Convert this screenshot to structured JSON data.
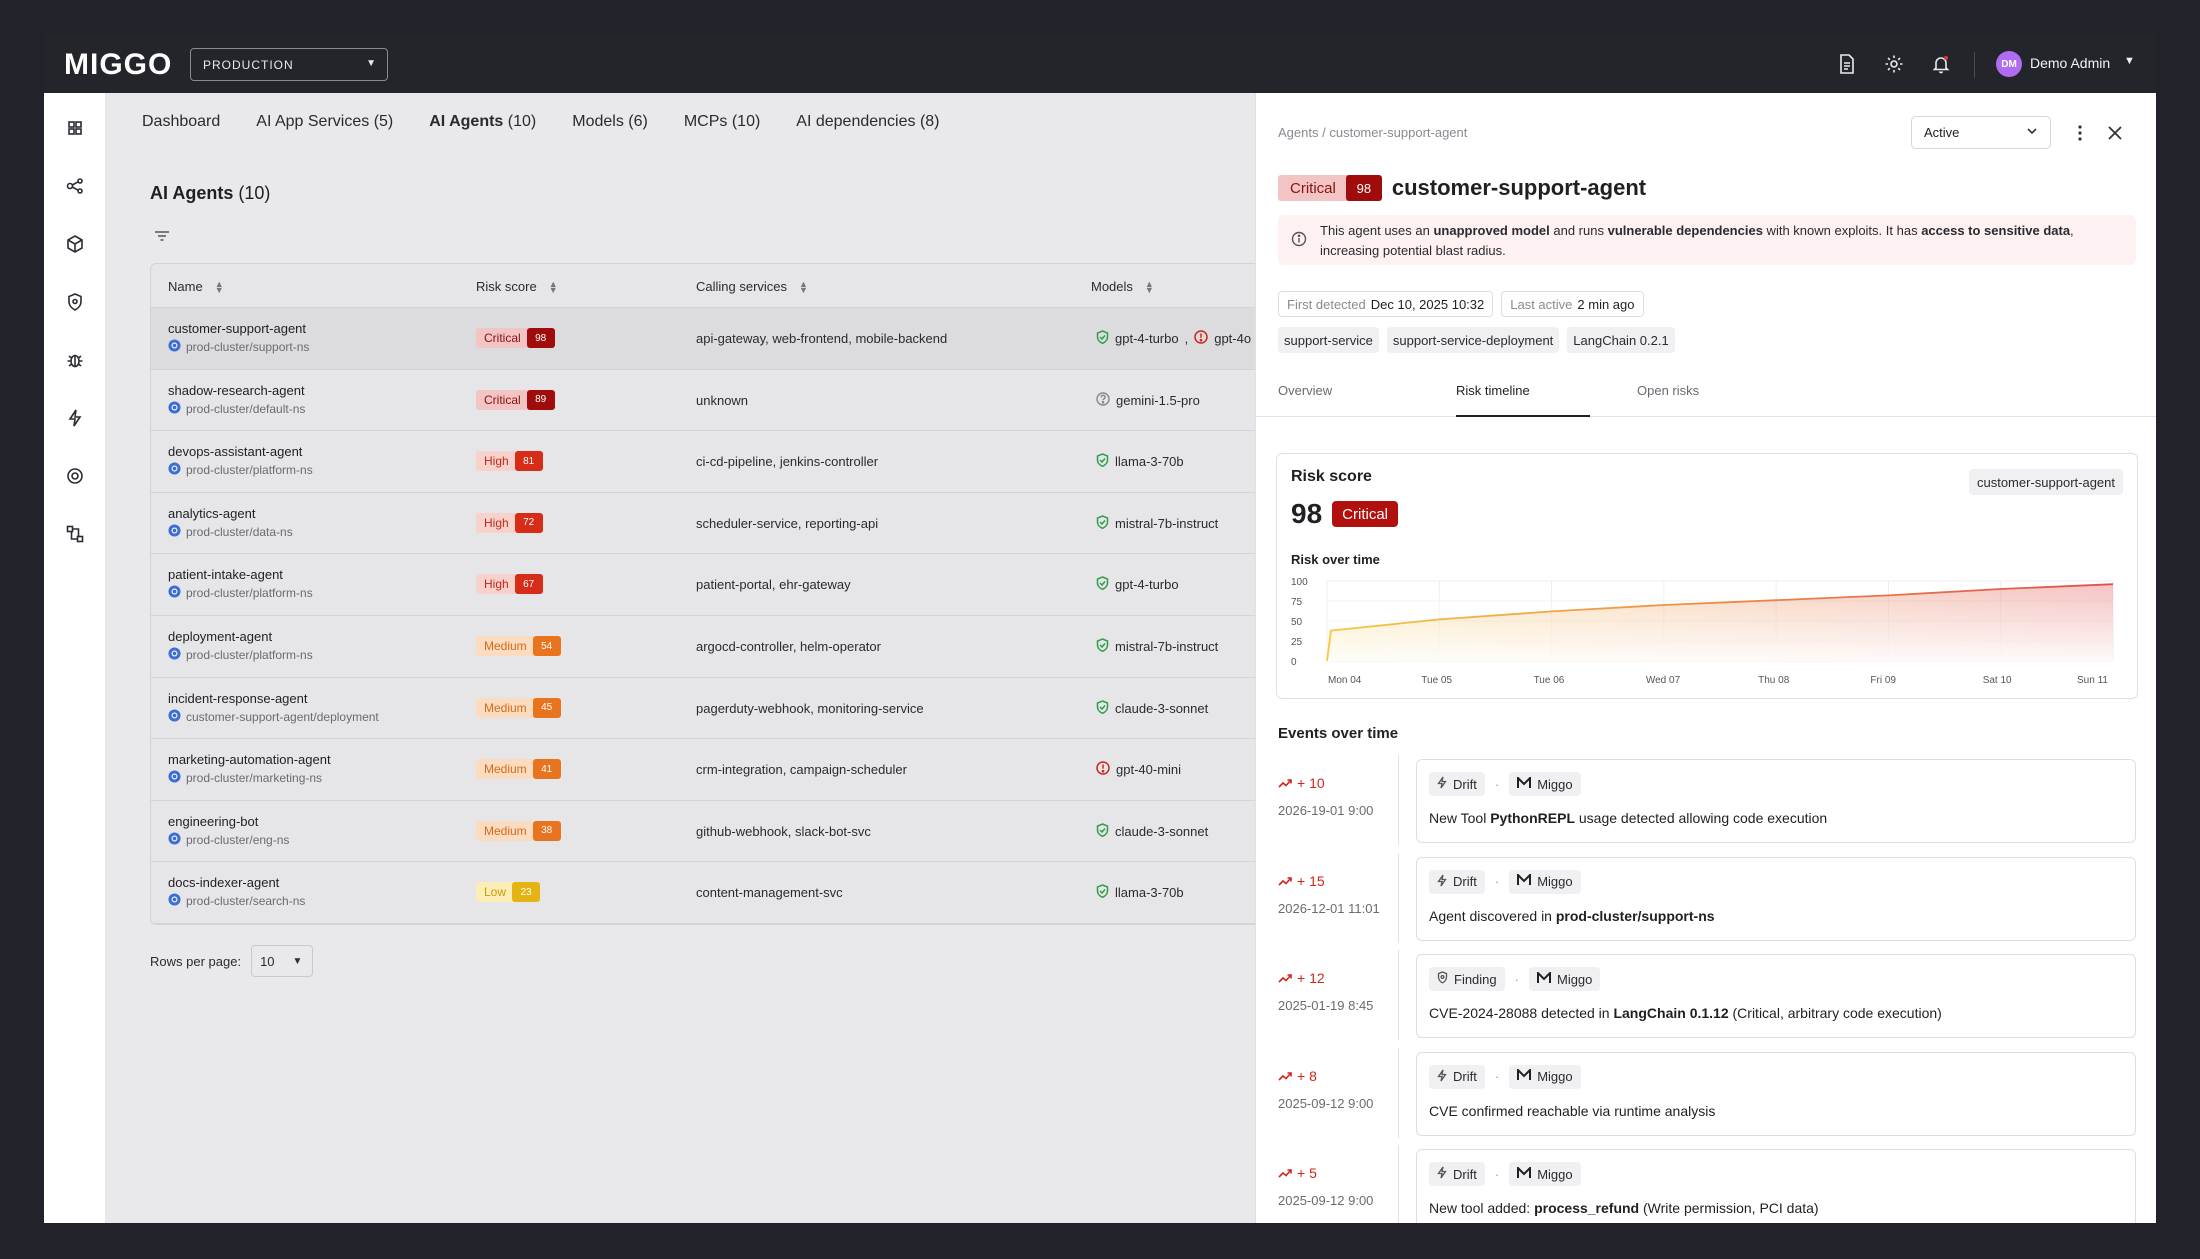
{
  "app": {
    "logo": "MIGGO",
    "environment": "PRODUCTION",
    "user": {
      "initials": "DM",
      "name": "Demo Admin"
    }
  },
  "tabs": [
    {
      "label": "Dashboard",
      "count": ""
    },
    {
      "label": "AI App Services",
      "count": "(5)"
    },
    {
      "label": "AI Agents",
      "count": "(10)"
    },
    {
      "label": "Models",
      "count": "(6)"
    },
    {
      "label": "MCPs",
      "count": "(10)"
    },
    {
      "label": "AI dependencies",
      "count": "(8)"
    }
  ],
  "main": {
    "title": "AI Agents",
    "title_count": "(10)",
    "columns": [
      "Name",
      "Risk score",
      "Calling services",
      "Models"
    ],
    "rows_per_page_label": "Rows per page:",
    "rows_per_page_value": "10"
  },
  "agents": [
    {
      "name": "customer-support-agent",
      "ns": "prod-cluster/support-ns",
      "risk_label": "Critical",
      "risk": "98",
      "calling": "api-gateway, web-frontend, mobile-backend",
      "model": "gpt-4-turbo",
      "model_status": "ok",
      "model2": "gpt-4o",
      "model2_status": "warn"
    },
    {
      "name": "shadow-research-agent",
      "ns": "prod-cluster/default-ns",
      "risk_label": "Critical",
      "risk": "89",
      "calling": "unknown",
      "model": "gemini-1.5-pro",
      "model_status": "unknown"
    },
    {
      "name": "devops-assistant-agent",
      "ns": "prod-cluster/platform-ns",
      "risk_label": "High",
      "risk": "81",
      "calling": "ci-cd-pipeline, jenkins-controller",
      "model": "llama-3-70b",
      "model_status": "ok"
    },
    {
      "name": "analytics-agent",
      "ns": "prod-cluster/data-ns",
      "risk_label": "High",
      "risk": "72",
      "calling": "scheduler-service, reporting-api",
      "model": "mistral-7b-instruct",
      "model_status": "ok"
    },
    {
      "name": "patient-intake-agent",
      "ns": "prod-cluster/platform-ns",
      "risk_label": "High",
      "risk": "67",
      "calling": "patient-portal, ehr-gateway",
      "model": "gpt-4-turbo",
      "model_status": "ok"
    },
    {
      "name": "deployment-agent",
      "ns": "prod-cluster/platform-ns",
      "risk_label": "Medium",
      "risk": "54",
      "calling": "argocd-controller, helm-operator",
      "model": "mistral-7b-instruct",
      "model_status": "ok"
    },
    {
      "name": "incident-response-agent",
      "ns": "customer-support-agent/deployment",
      "risk_label": "Medium",
      "risk": "45",
      "calling": "pagerduty-webhook, monitoring-service",
      "model": "claude-3-sonnet",
      "model_status": "ok"
    },
    {
      "name": "marketing-automation-agent",
      "ns": "prod-cluster/marketing-ns",
      "risk_label": "Medium",
      "risk": "41",
      "calling": "crm-integration, campaign-scheduler",
      "model": "gpt-40-mini",
      "model_status": "warn"
    },
    {
      "name": "engineering-bot",
      "ns": "prod-cluster/eng-ns",
      "risk_label": "Medium",
      "risk": "38",
      "calling": "github-webhook, slack-bot-svc",
      "model": "claude-3-sonnet",
      "model_status": "ok"
    },
    {
      "name": "docs-indexer-agent",
      "ns": "prod-cluster/search-ns",
      "risk_label": "Low",
      "risk": "23",
      "calling": "content-management-svc",
      "model": "llama-3-70b",
      "model_status": "ok"
    }
  ],
  "panel": {
    "breadcrumb_root": "Agents",
    "breadcrumb_sep": "/",
    "breadcrumb_leaf": "customer-support-agent",
    "status": "Active",
    "risk_label": "Critical",
    "risk": "98",
    "title": "customer-support-agent",
    "alert": {
      "p1": "This agent uses an ",
      "b1": "unapproved model",
      "p2": " and runs ",
      "b2": "vulnerable dependencies",
      "p3": " with known exploits. It has ",
      "b3": "access to sensitive data",
      "p4": ", increasing potential blast radius."
    },
    "first_detected_label": "First detected",
    "first_detected": "Dec 10, 2025 10:32",
    "last_active_label": "Last active",
    "last_active": "2 min ago",
    "tags": [
      "support-service",
      "support-service-deployment",
      "LangChain 0.2.1"
    ],
    "tabs": [
      "Overview",
      "Risk timeline",
      "Open risks"
    ],
    "risk_card": {
      "title": "Risk score",
      "tag": "customer-support-agent",
      "score": "98",
      "score_label": "Critical",
      "subtitle": "Risk over time"
    },
    "events_title": "Events over time"
  },
  "chart_data": {
    "type": "area",
    "title": "Risk over time",
    "x": [
      "Mon 04",
      "Tue 05",
      "Tue 06",
      "Wed 07",
      "Thu 08",
      "Fri 09",
      "Sat 10",
      "Sun 11"
    ],
    "values": [
      38,
      52,
      62,
      70,
      76,
      82,
      90,
      96
    ],
    "yticks": [
      0,
      25,
      50,
      75,
      100
    ],
    "ylim": [
      0,
      100
    ],
    "grid": true,
    "colors": {
      "low": "#f5c842",
      "high": "#e05050"
    }
  },
  "events": [
    {
      "delta": "+ 10",
      "date": "2026-19-01 9:00",
      "type": "Drift",
      "source": "Miggo",
      "pre": "New Tool ",
      "bold": "PythonREPL",
      "post": " usage detected allowing code execution"
    },
    {
      "delta": "+ 15",
      "date": "2026-12-01 11:01",
      "type": "Drift",
      "source": "Miggo",
      "pre": "Agent discovered in ",
      "bold": "prod-cluster/support-ns",
      "post": ""
    },
    {
      "delta": "+ 12",
      "date": "2025-01-19 8:45",
      "type": "Finding",
      "source": "Miggo",
      "pre": "CVE-2024-28088 detected in ",
      "bold": "LangChain 0.1.12",
      "post": " (Critical, arbitrary code execution)"
    },
    {
      "delta": "+ 8",
      "date": "2025-09-12 9:00",
      "type": "Drift",
      "source": "Miggo",
      "pre": "CVE confirmed reachable via runtime analysis",
      "bold": "",
      "post": ""
    },
    {
      "delta": "+ 5",
      "date": "2025-09-12 9:00",
      "type": "Drift",
      "source": "Miggo",
      "pre": "New tool added: ",
      "bold": "process_refund",
      "post": " (Write permission, PCI data)"
    }
  ]
}
